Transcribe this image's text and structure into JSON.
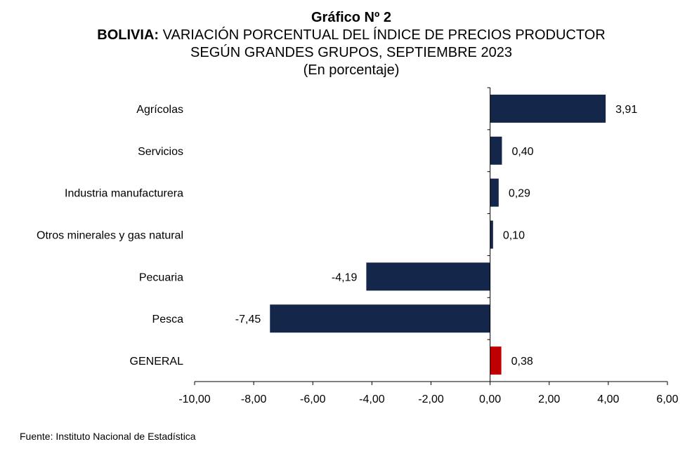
{
  "title": {
    "line1": "Gráfico Nº 2",
    "line2_bold": "BOLIVIA:",
    "line2_rest": " VARIACIÓN PORCENTUAL DEL ÍNDICE DE PRECIOS PRODUCTOR",
    "line3": "SEGÚN GRANDES GRUPOS, SEPTIEMBRE 2023",
    "line4": "(En porcentaje)"
  },
  "source": "Fuente: Instituto Nacional de Estadística",
  "colors": {
    "bar": "#14274a",
    "highlight": "#c00000",
    "axis": "#000000"
  },
  "chart_data": {
    "type": "bar",
    "orientation": "horizontal",
    "categories": [
      "Agrícolas",
      "Servicios",
      "Industria manufacturera",
      "Otros minerales y gas natural",
      "Pecuaria",
      "Pesca",
      "GENERAL"
    ],
    "values": [
      3.91,
      0.4,
      0.29,
      0.1,
      -4.19,
      -7.45,
      0.38
    ],
    "value_labels": [
      "3,91",
      "0,40",
      "0,29",
      "0,10",
      "-4,19",
      "-7,45",
      "0,38"
    ],
    "highlight_category": "GENERAL",
    "xlim": [
      -10,
      6
    ],
    "xticks": [
      -10,
      -8,
      -6,
      -4,
      -2,
      0,
      2,
      4,
      6
    ],
    "xtick_labels": [
      "-10,00",
      "-8,00",
      "-6,00",
      "-4,00",
      "-2,00",
      "0,00",
      "2,00",
      "4,00",
      "6,00"
    ],
    "grid": false,
    "legend": "none"
  }
}
